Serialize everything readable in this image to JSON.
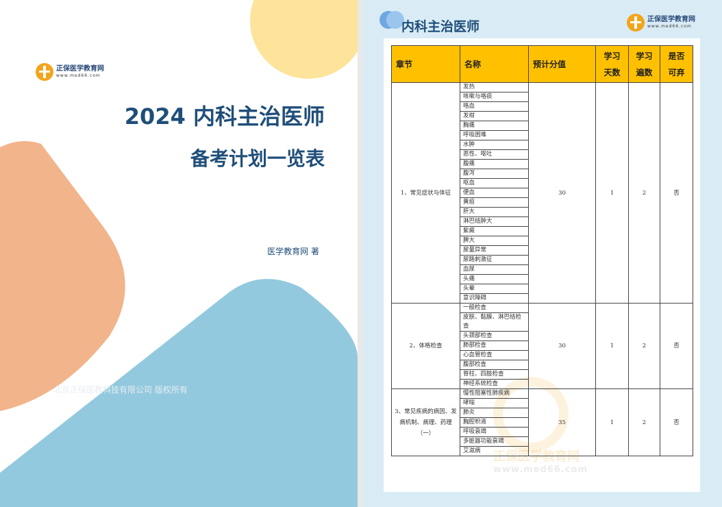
{
  "cover": {
    "logo": {
      "brand": "正保医学教育网",
      "url": "www.med66.com"
    },
    "title_line1": "2024 内科主治医师",
    "title_line2": "备考计划一览表",
    "author": "医学教育网 著",
    "copyright": "北京正保医教科技有限公司 版权所有",
    "colors": {
      "yellow": "#fde49a",
      "orange": "#f2b48a",
      "blue": "#93c9de",
      "title": "#1f4e79"
    }
  },
  "plan": {
    "title": "内科主治医师",
    "logo": {
      "brand": "正保医学教育网",
      "url": "www.med66.com"
    },
    "watermark": {
      "brand": "正保医学教育网",
      "url": "www.med66.com"
    },
    "headers": {
      "chapter": "章节",
      "name": "名称",
      "score": "预计分值",
      "days": [
        "学习",
        "天数"
      ],
      "weeks": [
        "学习",
        "遍数"
      ],
      "skip": [
        "是否",
        "可弃"
      ]
    },
    "sections": [
      {
        "chapter": "1、常见症状与体征",
        "score": "30",
        "days": "1",
        "weeks": "2",
        "skip": "否",
        "items": [
          "发热",
          "咳嗽与咯痰",
          "咯血",
          "发绀",
          "胸痛",
          "呼吸困难",
          "水肿",
          "恶性、呕吐",
          "腹痛",
          "腹泻",
          "呕血",
          "便血",
          "黄疸",
          "肝大",
          "淋巴结肿大",
          "紫癜",
          "脾大",
          "尿量异常",
          "尿路刺激征",
          "血尿",
          "头痛",
          "头晕",
          "意识障碍"
        ]
      },
      {
        "chapter": "2、体格检查",
        "score": "30",
        "days": "1",
        "weeks": "2",
        "skip": "否",
        "items": [
          "一般检查",
          "皮肤、黏膜、淋巴结检查",
          "头颈部检查",
          "肺部检查",
          "心血管检查",
          "腹部检查",
          "脊柱、四肢检查",
          "神经系统检查"
        ]
      },
      {
        "chapter": "3、常见疾病的病因、发病机制、病理、药理（一）",
        "score": "35",
        "days": "1",
        "weeks": "2",
        "skip": "否",
        "items": [
          "慢性阻塞性肺疾病",
          "哮喘",
          "肺炎",
          "胸腔积液",
          "呼吸衰竭",
          "多脏器功能衰竭",
          "艾滋病"
        ]
      }
    ]
  }
}
